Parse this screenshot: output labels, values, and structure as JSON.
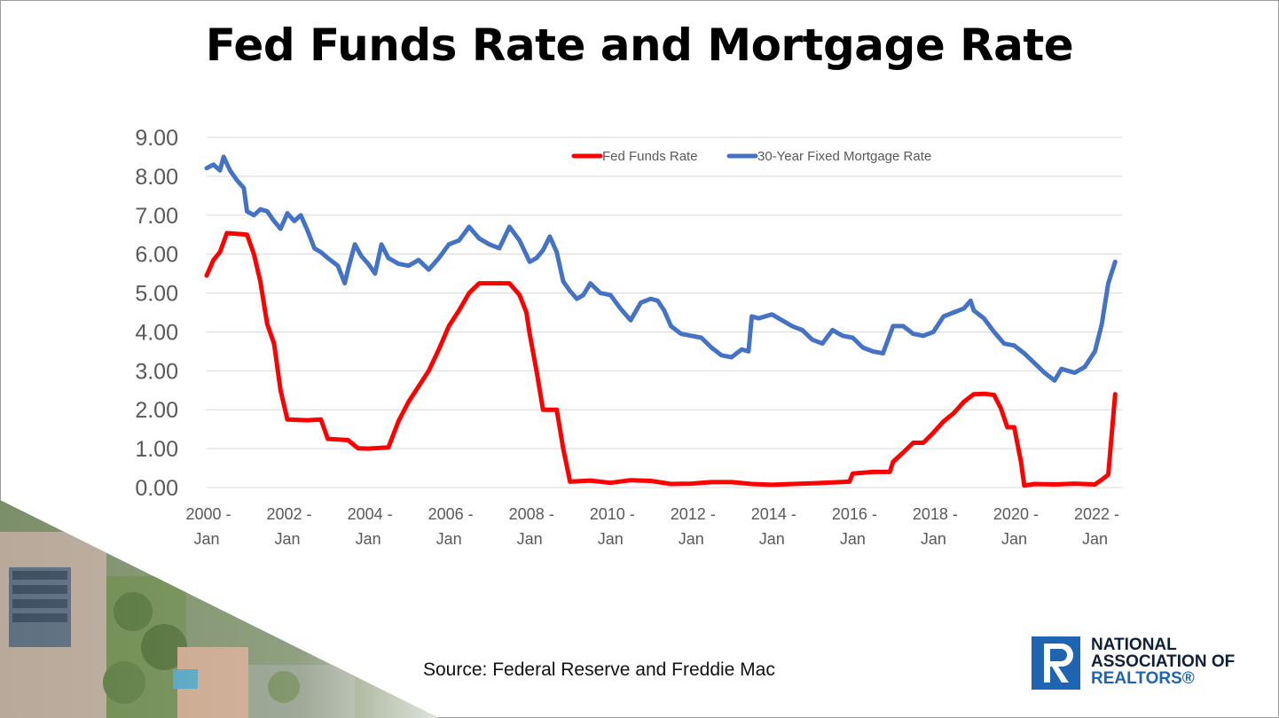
{
  "title": "Fed Funds Rate and Mortgage Rate",
  "source": "Source: Federal Reserve and Freddie Mac",
  "logo": {
    "line1": "NATIONAL",
    "line2": "ASSOCIATION OF",
    "line3": "REALTORS®"
  },
  "colors": {
    "fed_funds": "#ff0000",
    "mortgage": "#4472c4",
    "grid": "#d9d9d9",
    "axis_text": "#595959",
    "brand_blue": "#1f64b0"
  },
  "chart_data": {
    "type": "line",
    "ylim": [
      0,
      9
    ],
    "yticks": [
      "0.00",
      "1.00",
      "2.00",
      "3.00",
      "4.00",
      "5.00",
      "6.00",
      "7.00",
      "8.00",
      "9.00"
    ],
    "xticks": [
      "2000 - Jan",
      "2002 - Jan",
      "2004 - Jan",
      "2006 - Jan",
      "2008 - Jan",
      "2010 - Jan",
      "2012 - Jan",
      "2014 - Jan",
      "2016 - Jan",
      "2018 - Jan",
      "2020 - Jan",
      "2022 - Jan"
    ],
    "grid": true,
    "legend_position": "top-center",
    "series": [
      {
        "name": "Fed Funds Rate",
        "color": "#ff0000",
        "x": [
          2000.0,
          2000.17,
          2000.33,
          2000.5,
          2000.75,
          2001.0,
          2001.17,
          2001.33,
          2001.5,
          2001.67,
          2001.83,
          2002.0,
          2002.5,
          2002.83,
          2003.0,
          2003.5,
          2003.75,
          2004.0,
          2004.5,
          2004.75,
          2005.0,
          2005.25,
          2005.5,
          2005.75,
          2006.0,
          2006.25,
          2006.5,
          2006.75,
          2007.0,
          2007.5,
          2007.75,
          2007.92,
          2008.0,
          2008.17,
          2008.33,
          2008.67,
          2008.83,
          2009.0,
          2009.5,
          2010.0,
          2010.5,
          2011.0,
          2011.5,
          2012.0,
          2012.5,
          2013.0,
          2013.5,
          2014.0,
          2014.5,
          2015.0,
          2015.5,
          2015.92,
          2016.0,
          2016.5,
          2016.92,
          2017.0,
          2017.25,
          2017.5,
          2017.75,
          2018.0,
          2018.25,
          2018.5,
          2018.75,
          2019.0,
          2019.25,
          2019.5,
          2019.67,
          2019.83,
          2020.0,
          2020.17,
          2020.25,
          2020.5,
          2021.0,
          2021.5,
          2022.0,
          2022.17,
          2022.33,
          2022.5
        ],
        "values": [
          5.45,
          5.85,
          6.05,
          6.54,
          6.52,
          6.5,
          6.0,
          5.3,
          4.2,
          3.7,
          2.5,
          1.75,
          1.73,
          1.75,
          1.25,
          1.22,
          1.01,
          1.0,
          1.03,
          1.7,
          2.2,
          2.6,
          3.0,
          3.55,
          4.15,
          4.55,
          5.0,
          5.25,
          5.25,
          5.25,
          4.95,
          4.5,
          3.95,
          3.0,
          2.0,
          2.0,
          1.0,
          0.15,
          0.18,
          0.12,
          0.19,
          0.17,
          0.09,
          0.1,
          0.14,
          0.14,
          0.09,
          0.07,
          0.09,
          0.11,
          0.13,
          0.15,
          0.36,
          0.4,
          0.4,
          0.66,
          0.9,
          1.15,
          1.15,
          1.41,
          1.7,
          1.91,
          2.2,
          2.4,
          2.41,
          2.38,
          2.04,
          1.55,
          1.55,
          0.65,
          0.05,
          0.09,
          0.08,
          0.1,
          0.08,
          0.2,
          0.33,
          2.4
        ]
      },
      {
        "name": "30-Year Fixed Mortgage Rate",
        "color": "#4472c4",
        "x": [
          2000.0,
          2000.17,
          2000.33,
          2000.42,
          2000.58,
          2000.75,
          2000.92,
          2001.0,
          2001.17,
          2001.33,
          2001.5,
          2001.67,
          2001.83,
          2002.0,
          2002.17,
          2002.33,
          2002.5,
          2002.67,
          2002.83,
          2003.0,
          2003.25,
          2003.42,
          2003.5,
          2003.67,
          2003.83,
          2004.0,
          2004.17,
          2004.33,
          2004.5,
          2004.75,
          2005.0,
          2005.25,
          2005.5,
          2005.75,
          2006.0,
          2006.25,
          2006.5,
          2006.75,
          2007.0,
          2007.25,
          2007.5,
          2007.75,
          2008.0,
          2008.17,
          2008.33,
          2008.5,
          2008.67,
          2008.83,
          2009.0,
          2009.17,
          2009.33,
          2009.5,
          2009.75,
          2010.0,
          2010.25,
          2010.5,
          2010.75,
          2011.0,
          2011.17,
          2011.33,
          2011.5,
          2011.75,
          2012.0,
          2012.25,
          2012.5,
          2012.75,
          2013.0,
          2013.25,
          2013.42,
          2013.5,
          2013.67,
          2014.0,
          2014.25,
          2014.5,
          2014.75,
          2015.0,
          2015.25,
          2015.5,
          2015.75,
          2016.0,
          2016.25,
          2016.5,
          2016.75,
          2017.0,
          2017.25,
          2017.5,
          2017.75,
          2018.0,
          2018.25,
          2018.5,
          2018.75,
          2018.92,
          2019.0,
          2019.25,
          2019.5,
          2019.75,
          2020.0,
          2020.25,
          2020.5,
          2020.75,
          2021.0,
          2021.17,
          2021.33,
          2021.5,
          2021.75,
          2022.0,
          2022.17,
          2022.33,
          2022.5
        ],
        "values": [
          8.21,
          8.3,
          8.15,
          8.5,
          8.15,
          7.9,
          7.7,
          7.1,
          7.0,
          7.15,
          7.1,
          6.85,
          6.65,
          7.05,
          6.85,
          7.0,
          6.6,
          6.15,
          6.05,
          5.9,
          5.7,
          5.25,
          5.6,
          6.25,
          5.95,
          5.75,
          5.5,
          6.25,
          5.9,
          5.75,
          5.7,
          5.85,
          5.6,
          5.9,
          6.25,
          6.35,
          6.7,
          6.4,
          6.25,
          6.15,
          6.7,
          6.35,
          5.8,
          5.9,
          6.1,
          6.45,
          6.05,
          5.3,
          5.05,
          4.85,
          4.95,
          5.25,
          5.0,
          4.95,
          4.6,
          4.3,
          4.75,
          4.85,
          4.8,
          4.55,
          4.15,
          3.95,
          3.9,
          3.85,
          3.6,
          3.4,
          3.35,
          3.55,
          3.5,
          4.4,
          4.35,
          4.45,
          4.3,
          4.15,
          4.05,
          3.8,
          3.7,
          4.05,
          3.9,
          3.85,
          3.6,
          3.5,
          3.45,
          4.15,
          4.15,
          3.95,
          3.9,
          4.0,
          4.4,
          4.5,
          4.6,
          4.8,
          4.55,
          4.35,
          4.0,
          3.7,
          3.65,
          3.45,
          3.2,
          2.95,
          2.75,
          3.05,
          3.0,
          2.95,
          3.1,
          3.5,
          4.2,
          5.25,
          5.8
        ]
      }
    ]
  }
}
